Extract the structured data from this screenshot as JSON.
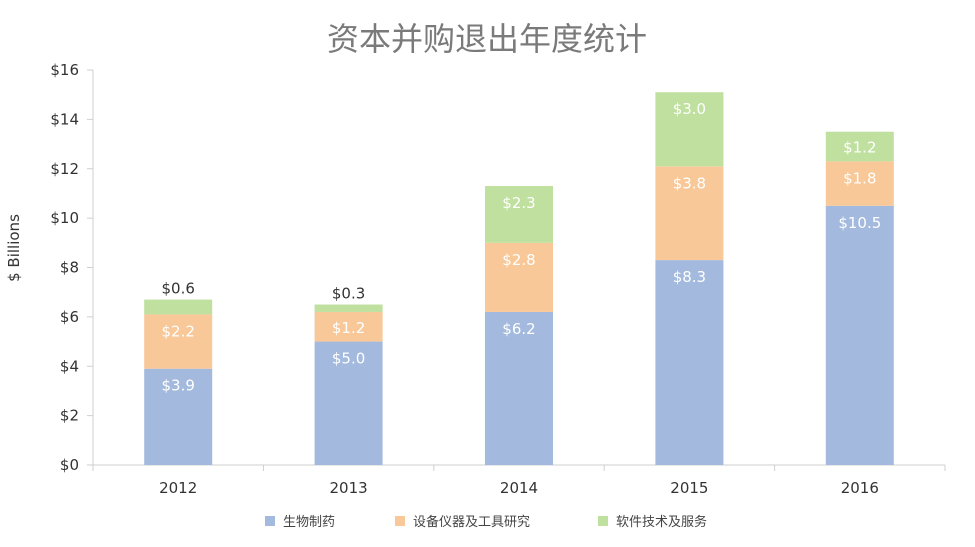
{
  "chart_data": {
    "type": "bar",
    "stacked": true,
    "title": "资本并购退出年度统计",
    "ylabel": "$ Billions",
    "xlabel": "",
    "ylim": [
      0,
      16
    ],
    "yticks": [
      0,
      2,
      4,
      6,
      8,
      10,
      12,
      14,
      16
    ],
    "ytick_labels": [
      "$0",
      "$2",
      "$4",
      "$6",
      "$8",
      "$10",
      "$12",
      "$14",
      "$16"
    ],
    "categories": [
      "2012",
      "2013",
      "2014",
      "2015",
      "2016"
    ],
    "series": [
      {
        "name": "生物制药",
        "color": "#a3b9dd",
        "values": [
          3.9,
          5.0,
          6.2,
          8.3,
          10.5
        ],
        "labels": [
          "$3.9",
          "$5.0",
          "$6.2",
          "$8.3",
          "$10.5"
        ]
      },
      {
        "name": "设备仪器及工具研究",
        "color": "#f8c898",
        "values": [
          2.2,
          1.2,
          2.8,
          3.8,
          1.8
        ],
        "labels": [
          "$2.2",
          "$1.2",
          "$2.8",
          "$3.8",
          "$1.8"
        ]
      },
      {
        "name": "软件技术及服务",
        "color": "#bfe09e",
        "values": [
          0.6,
          0.3,
          2.3,
          3.0,
          1.2
        ],
        "labels": [
          "$0.6",
          "$0.3",
          "$2.3",
          "$3.0",
          "$1.2"
        ]
      }
    ],
    "grid": false,
    "legend_position": "bottom"
  }
}
